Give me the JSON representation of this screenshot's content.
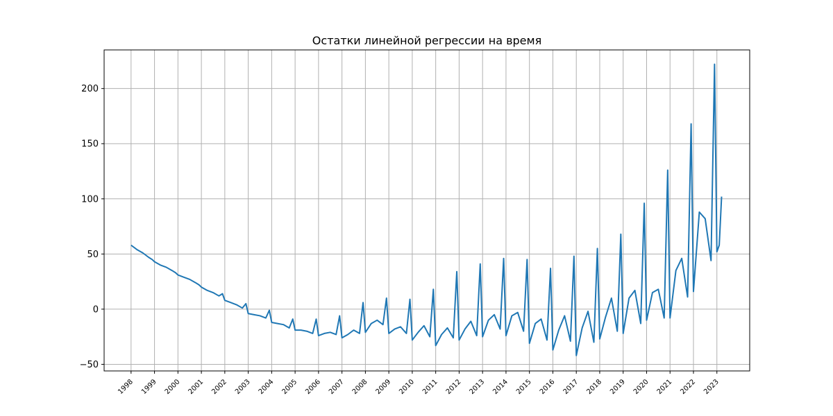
{
  "chart_data": {
    "type": "line",
    "title": "Остатки линейной регрессии на время",
    "xlabel": "",
    "ylabel": "",
    "x_tick_labels": [
      "1998",
      "1999",
      "2000",
      "2001",
      "2002",
      "2003",
      "2004",
      "2005",
      "2006",
      "2007",
      "2008",
      "2009",
      "2010",
      "2011",
      "2012",
      "2013",
      "2014",
      "2015",
      "2016",
      "2017",
      "2018",
      "2019",
      "2020",
      "2021",
      "2022",
      "2023"
    ],
    "y_tick_labels": [
      "−50",
      "0",
      "50",
      "100",
      "150",
      "200"
    ],
    "y_ticks": [
      -50,
      0,
      50,
      100,
      150,
      200
    ],
    "xlim": [
      1996.85,
      2024.4
    ],
    "ylim": [
      -56,
      235
    ],
    "grid": true,
    "line_color": "#1f77b4",
    "series": [
      {
        "points": [
          [
            1998.0,
            58
          ],
          [
            1998.25,
            54
          ],
          [
            1998.5,
            51
          ],
          [
            1998.75,
            47
          ],
          [
            1998.9,
            45
          ],
          [
            1999.0,
            43
          ],
          [
            1999.25,
            40
          ],
          [
            1999.5,
            38
          ],
          [
            1999.75,
            35
          ],
          [
            1999.9,
            33
          ],
          [
            2000.0,
            31
          ],
          [
            2000.25,
            29
          ],
          [
            2000.5,
            27
          ],
          [
            2000.75,
            24
          ],
          [
            2000.9,
            22
          ],
          [
            2001.0,
            20
          ],
          [
            2001.25,
            17
          ],
          [
            2001.5,
            15
          ],
          [
            2001.75,
            12
          ],
          [
            2001.9,
            14
          ],
          [
            2002.0,
            8
          ],
          [
            2002.25,
            6
          ],
          [
            2002.5,
            4
          ],
          [
            2002.75,
            1
          ],
          [
            2002.9,
            5
          ],
          [
            2003.0,
            -4
          ],
          [
            2003.25,
            -5
          ],
          [
            2003.5,
            -6
          ],
          [
            2003.75,
            -8
          ],
          [
            2003.9,
            -1
          ],
          [
            2004.0,
            -12
          ],
          [
            2004.25,
            -13
          ],
          [
            2004.5,
            -14
          ],
          [
            2004.75,
            -17
          ],
          [
            2004.9,
            -9
          ],
          [
            2005.0,
            -19
          ],
          [
            2005.25,
            -19
          ],
          [
            2005.5,
            -20
          ],
          [
            2005.75,
            -22
          ],
          [
            2005.9,
            -9
          ],
          [
            2006.0,
            -24
          ],
          [
            2006.25,
            -22
          ],
          [
            2006.5,
            -21
          ],
          [
            2006.75,
            -23
          ],
          [
            2006.9,
            -6
          ],
          [
            2007.0,
            -26
          ],
          [
            2007.25,
            -23
          ],
          [
            2007.5,
            -19
          ],
          [
            2007.75,
            -22
          ],
          [
            2007.9,
            6
          ],
          [
            2008.0,
            -21
          ],
          [
            2008.25,
            -13
          ],
          [
            2008.5,
            -10
          ],
          [
            2008.75,
            -14
          ],
          [
            2008.9,
            10
          ],
          [
            2009.0,
            -22
          ],
          [
            2009.25,
            -18
          ],
          [
            2009.5,
            -16
          ],
          [
            2009.75,
            -22
          ],
          [
            2009.9,
            9
          ],
          [
            2010.0,
            -28
          ],
          [
            2010.25,
            -21
          ],
          [
            2010.5,
            -15
          ],
          [
            2010.75,
            -25
          ],
          [
            2010.9,
            18
          ],
          [
            2011.0,
            -33
          ],
          [
            2011.25,
            -23
          ],
          [
            2011.5,
            -17
          ],
          [
            2011.75,
            -26
          ],
          [
            2011.9,
            34
          ],
          [
            2012.0,
            -28
          ],
          [
            2012.25,
            -18
          ],
          [
            2012.5,
            -11
          ],
          [
            2012.75,
            -24
          ],
          [
            2012.9,
            41
          ],
          [
            2013.0,
            -25
          ],
          [
            2013.25,
            -10
          ],
          [
            2013.5,
            -5
          ],
          [
            2013.75,
            -18
          ],
          [
            2013.9,
            46
          ],
          [
            2014.0,
            -24
          ],
          [
            2014.25,
            -6
          ],
          [
            2014.5,
            -3
          ],
          [
            2014.75,
            -20
          ],
          [
            2014.9,
            45
          ],
          [
            2015.0,
            -31
          ],
          [
            2015.25,
            -13
          ],
          [
            2015.5,
            -9
          ],
          [
            2015.75,
            -28
          ],
          [
            2015.9,
            37
          ],
          [
            2016.0,
            -37
          ],
          [
            2016.25,
            -19
          ],
          [
            2016.5,
            -6
          ],
          [
            2016.75,
            -29
          ],
          [
            2016.9,
            48
          ],
          [
            2017.0,
            -42
          ],
          [
            2017.25,
            -17
          ],
          [
            2017.5,
            -2
          ],
          [
            2017.75,
            -30
          ],
          [
            2017.9,
            55
          ],
          [
            2018.0,
            -27
          ],
          [
            2018.25,
            -7
          ],
          [
            2018.5,
            10
          ],
          [
            2018.75,
            -20
          ],
          [
            2018.9,
            68
          ],
          [
            2019.0,
            -22
          ],
          [
            2019.25,
            10
          ],
          [
            2019.5,
            17
          ],
          [
            2019.75,
            -13
          ],
          [
            2019.9,
            96
          ],
          [
            2020.0,
            -10
          ],
          [
            2020.25,
            15
          ],
          [
            2020.5,
            18
          ],
          [
            2020.75,
            -8
          ],
          [
            2020.9,
            126
          ],
          [
            2021.0,
            -8
          ],
          [
            2021.25,
            35
          ],
          [
            2021.5,
            46
          ],
          [
            2021.75,
            11
          ],
          [
            2021.9,
            168
          ],
          [
            2022.0,
            16
          ],
          [
            2022.25,
            88
          ],
          [
            2022.5,
            82
          ],
          [
            2022.75,
            44
          ],
          [
            2022.9,
            222
          ],
          [
            2023.0,
            52
          ],
          [
            2023.1,
            58
          ],
          [
            2023.2,
            102
          ]
        ]
      }
    ]
  }
}
